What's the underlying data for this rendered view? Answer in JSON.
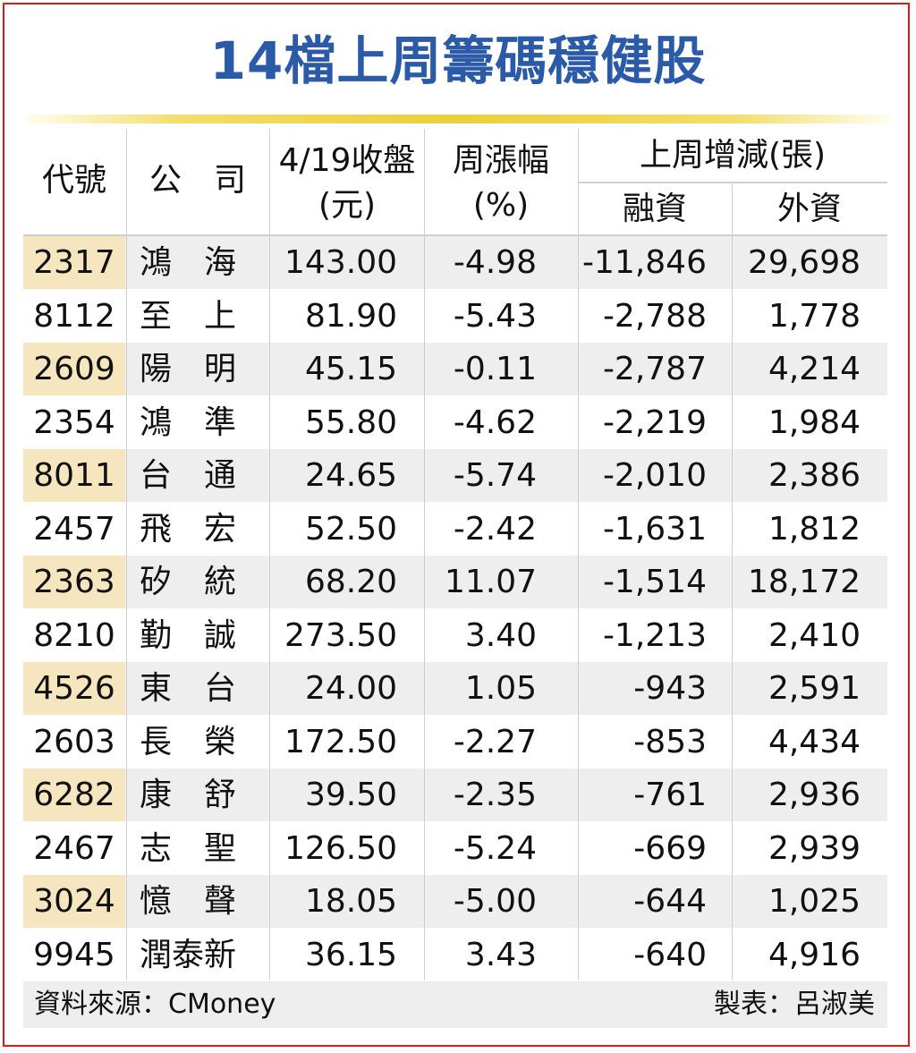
{
  "title": "14檔上周籌碼穩健股",
  "header": {
    "code": "代號",
    "company": "公　司",
    "close_line1": "4/19收盤",
    "close_line2": "(元)",
    "change_line1": "周漲幅",
    "change_line2": "(%)",
    "group": "上周增減(張)",
    "margin": "融資",
    "foreign": "外資"
  },
  "rows": [
    {
      "code": "2317",
      "name": "鴻　海",
      "close": "143.00",
      "change": "-4.98",
      "margin": "-11,846",
      "foreign": "29,698"
    },
    {
      "code": "8112",
      "name": "至　上",
      "close": "81.90",
      "change": "-5.43",
      "margin": "-2,788",
      "foreign": "1,778"
    },
    {
      "code": "2609",
      "name": "陽　明",
      "close": "45.15",
      "change": "-0.11",
      "margin": "-2,787",
      "foreign": "4,214"
    },
    {
      "code": "2354",
      "name": "鴻　準",
      "close": "55.80",
      "change": "-4.62",
      "margin": "-2,219",
      "foreign": "1,984"
    },
    {
      "code": "8011",
      "name": "台　通",
      "close": "24.65",
      "change": "-5.74",
      "margin": "-2,010",
      "foreign": "2,386"
    },
    {
      "code": "2457",
      "name": "飛　宏",
      "close": "52.50",
      "change": "-2.42",
      "margin": "-1,631",
      "foreign": "1,812"
    },
    {
      "code": "2363",
      "name": "矽　統",
      "close": "68.20",
      "change": "11.07",
      "margin": "-1,514",
      "foreign": "18,172"
    },
    {
      "code": "8210",
      "name": "勤　誠",
      "close": "273.50",
      "change": "3.40",
      "margin": "-1,213",
      "foreign": "2,410"
    },
    {
      "code": "4526",
      "name": "東　台",
      "close": "24.00",
      "change": "1.05",
      "margin": "-943",
      "foreign": "2,591"
    },
    {
      "code": "2603",
      "name": "長　榮",
      "close": "172.50",
      "change": "-2.27",
      "margin": "-853",
      "foreign": "4,434"
    },
    {
      "code": "6282",
      "name": "康　舒",
      "close": "39.50",
      "change": "-2.35",
      "margin": "-761",
      "foreign": "2,936"
    },
    {
      "code": "2467",
      "name": "志　聖",
      "close": "126.50",
      "change": "-5.24",
      "margin": "-669",
      "foreign": "2,939"
    },
    {
      "code": "3024",
      "name": "憶　聲",
      "close": "18.05",
      "change": "-5.00",
      "margin": "-644",
      "foreign": "1,025"
    },
    {
      "code": "9945",
      "name": "潤泰新",
      "close": "36.15",
      "change": "3.43",
      "margin": "-640",
      "foreign": "4,916"
    }
  ],
  "footer": {
    "source": "資料來源：CMoney",
    "author": "製表：呂淑美"
  },
  "colors": {
    "title": "#2a5aa8",
    "frame": "#e01818",
    "rule": "#ebcf3c",
    "row_shade": "#eeeeee",
    "code_highlight": "#f5e6c0"
  }
}
